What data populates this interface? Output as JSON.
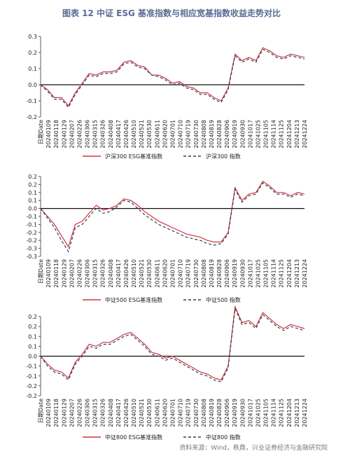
{
  "title": "图表 12  中证 ESG 基准指数与相应宽基指数收益走势对比",
  "source": "资料来源：Wind，秩鼎，兴业证券经济与金融研究院",
  "colors": {
    "esg": "#d2353f",
    "base": "#2f4159"
  },
  "chart_data": [
    {
      "type": "line",
      "title": "",
      "xlabel": "日期Date",
      "ylabel": "",
      "ylim": [
        -0.2,
        0.3
      ],
      "yticks": [
        0.3,
        0.2,
        0.1,
        0.0,
        -0.1,
        -0.2
      ],
      "ytick_labels": [
        "0.3",
        "0.2",
        "0.1",
        "0.0",
        "-0.1",
        "-0.2"
      ],
      "x_ticks": [
        "20240109",
        "20240118",
        "20240129",
        "20240207",
        "20240226",
        "20240306",
        "20240315",
        "20240326",
        "20240408",
        "20240417",
        "20240426",
        "20240510",
        "20240521",
        "20240530",
        "20240611",
        "20240620",
        "20240701",
        "20240710",
        "20240719",
        "20240730",
        "20240808",
        "20240819",
        "20240828",
        "20240906",
        "20240919",
        "20240930",
        "20241017",
        "20241025",
        "20241105",
        "20241114",
        "20241125",
        "20241204",
        "20241213",
        "20241224"
      ],
      "x": [
        "20240102",
        "20240109",
        "20240118",
        "20240129",
        "20240205",
        "20240207",
        "20240226",
        "20240306",
        "20240315",
        "20240326",
        "20240408",
        "20240417",
        "20240426",
        "20240510",
        "20240521",
        "20240530",
        "20240611",
        "20240620",
        "20240701",
        "20240710",
        "20240719",
        "20240730",
        "20240808",
        "20240819",
        "20240828",
        "20240906",
        "20240919",
        "20240924",
        "20240930",
        "20241008",
        "20241017",
        "20241025",
        "20241105",
        "20241114",
        "20241125",
        "20241204",
        "20241213",
        "20241224",
        "20241231"
      ],
      "legend": [
        "沪深300 ESG基准指数",
        "沪深300 指数"
      ],
      "series": [
        {
          "name": "沪深300 ESG基准指数",
          "values": [
            0.0,
            -0.03,
            -0.08,
            -0.08,
            -0.13,
            -0.05,
            0.01,
            0.07,
            0.06,
            0.08,
            0.08,
            0.09,
            0.14,
            0.15,
            0.12,
            0.11,
            0.06,
            0.06,
            0.04,
            0.01,
            0.02,
            -0.01,
            -0.02,
            -0.05,
            -0.05,
            -0.08,
            -0.1,
            -0.02,
            0.19,
            0.15,
            0.17,
            0.15,
            0.23,
            0.21,
            0.18,
            0.17,
            0.19,
            0.18,
            0.17
          ]
        },
        {
          "name": "沪深300 指数",
          "values": [
            0.0,
            -0.04,
            -0.09,
            -0.09,
            -0.14,
            -0.06,
            0.0,
            0.06,
            0.05,
            0.07,
            0.07,
            0.08,
            0.13,
            0.14,
            0.11,
            0.1,
            0.06,
            0.05,
            0.03,
            0.0,
            0.01,
            -0.02,
            -0.03,
            -0.06,
            -0.06,
            -0.09,
            -0.11,
            -0.03,
            0.18,
            0.14,
            0.16,
            0.14,
            0.22,
            0.2,
            0.17,
            0.16,
            0.18,
            0.17,
            0.16
          ]
        }
      ]
    },
    {
      "type": "line",
      "title": "",
      "xlabel": "日期Date",
      "ylabel": "",
      "ylim": [
        -0.3,
        0.2
      ],
      "yticks": [
        0.2,
        0.15,
        0.1,
        0.05,
        0.0,
        -0.05,
        -0.1,
        -0.15,
        -0.2,
        -0.25,
        -0.3
      ],
      "ytick_labels": [
        "0.2",
        "0.2",
        "0.1",
        "0.1",
        "0.0",
        "-0.1",
        "-0.1",
        "-0.2",
        "-0.2",
        "-0.3",
        "-0.3"
      ],
      "x_ticks": [
        "20240109",
        "20240118",
        "20240129",
        "20240207",
        "20240226",
        "20240306",
        "20240315",
        "20240326",
        "20240408",
        "20240417",
        "20240426",
        "20240510",
        "20240521",
        "20240530",
        "20240611",
        "20240620",
        "20240701",
        "20240710",
        "20240719",
        "20240730",
        "20240808",
        "20240819",
        "20240828",
        "20240906",
        "20240919",
        "20240930",
        "20241017",
        "20241025",
        "20241105",
        "20241114",
        "20241125",
        "20241204",
        "20241213",
        "20241224"
      ],
      "x": [
        "20240102",
        "20240109",
        "20240118",
        "20240129",
        "20240205",
        "20240207",
        "20240226",
        "20240306",
        "20240315",
        "20240326",
        "20240408",
        "20240417",
        "20240426",
        "20240510",
        "20240521",
        "20240530",
        "20240611",
        "20240620",
        "20240701",
        "20240710",
        "20240719",
        "20240730",
        "20240808",
        "20240819",
        "20240828",
        "20240906",
        "20240919",
        "20240924",
        "20240930",
        "20241008",
        "20241017",
        "20241025",
        "20241105",
        "20241114",
        "20241125",
        "20241204",
        "20241213",
        "20241224",
        "20241231"
      ],
      "legend": [
        "中证500 ESG基准指数",
        "中证500 指数"
      ],
      "series": [
        {
          "name": "中证500 ESG基准指数",
          "values": [
            0.0,
            -0.05,
            -0.1,
            -0.17,
            -0.24,
            -0.1,
            -0.08,
            -0.03,
            0.02,
            -0.01,
            0.0,
            0.02,
            0.06,
            0.05,
            0.02,
            -0.02,
            -0.05,
            -0.08,
            -0.1,
            -0.12,
            -0.14,
            -0.16,
            -0.17,
            -0.18,
            -0.2,
            -0.21,
            -0.21,
            -0.15,
            0.13,
            0.05,
            0.09,
            0.1,
            0.17,
            0.14,
            0.1,
            0.1,
            0.08,
            0.1,
            0.09
          ]
        },
        {
          "name": "中证500 指数",
          "values": [
            0.0,
            -0.06,
            -0.12,
            -0.2,
            -0.27,
            -0.12,
            -0.1,
            -0.05,
            0.0,
            -0.03,
            -0.02,
            0.01,
            0.05,
            0.04,
            0.0,
            -0.04,
            -0.07,
            -0.1,
            -0.12,
            -0.14,
            -0.16,
            -0.18,
            -0.19,
            -0.2,
            -0.22,
            -0.23,
            -0.22,
            -0.16,
            0.12,
            0.04,
            0.08,
            0.09,
            0.16,
            0.13,
            0.09,
            0.09,
            0.07,
            0.09,
            0.08
          ]
        }
      ]
    },
    {
      "type": "line",
      "title": "",
      "xlabel": "日期Date",
      "ylabel": "",
      "ylim": [
        -0.2,
        0.2
      ],
      "yticks": [
        0.2,
        0.15,
        0.1,
        0.05,
        0.0,
        -0.05,
        -0.1,
        -0.15,
        -0.2
      ],
      "ytick_labels": [
        "0.2",
        "0.2",
        "0.1",
        "0.1",
        "0.0",
        "-0.1",
        "-0.1",
        "-0.2",
        "-0.2"
      ],
      "x_ticks": [
        "20240109",
        "20240118",
        "20240129",
        "20240207",
        "20240226",
        "20240306",
        "20240315",
        "20240326",
        "20240408",
        "20240417",
        "20240426",
        "20240510",
        "20240521",
        "20240530",
        "20240611",
        "20240620",
        "20240701",
        "20240710",
        "20240719",
        "20240730",
        "20240808",
        "20240819",
        "20240828",
        "20240906",
        "20240919",
        "20240930",
        "20241017",
        "20241025",
        "20241105",
        "20241114",
        "20241125",
        "20241204",
        "20241213",
        "20241224"
      ],
      "x": [
        "20240102",
        "20240109",
        "20240118",
        "20240129",
        "20240205",
        "20240207",
        "20240226",
        "20240306",
        "20240315",
        "20240326",
        "20240408",
        "20240417",
        "20240426",
        "20240510",
        "20240521",
        "20240530",
        "20240611",
        "20240620",
        "20240701",
        "20240710",
        "20240719",
        "20240730",
        "20240808",
        "20240819",
        "20240828",
        "20240906",
        "20240919",
        "20240924",
        "20240930",
        "20241008",
        "20241017",
        "20241025",
        "20241105",
        "20241114",
        "20241125",
        "20241204",
        "20241213",
        "20241224",
        "20241231"
      ],
      "legend": [
        "中证800 ESG基准指数",
        "中证800 指数"
      ],
      "series": [
        {
          "name": "中证800 ESG基准指数",
          "values": [
            0.0,
            -0.04,
            -0.07,
            -0.08,
            -0.11,
            -0.03,
            0.01,
            0.06,
            0.05,
            0.07,
            0.07,
            0.09,
            0.11,
            0.12,
            0.09,
            0.06,
            0.02,
            0.01,
            -0.01,
            0.0,
            -0.02,
            -0.04,
            -0.06,
            -0.08,
            -0.09,
            -0.11,
            -0.12,
            -0.05,
            0.25,
            0.17,
            0.18,
            0.15,
            0.22,
            0.19,
            0.16,
            0.14,
            0.16,
            0.15,
            0.14
          ]
        },
        {
          "name": "中证800 指数",
          "values": [
            0.0,
            -0.05,
            -0.08,
            -0.09,
            -0.12,
            -0.04,
            0.0,
            0.05,
            0.04,
            0.06,
            0.06,
            0.08,
            0.1,
            0.11,
            0.08,
            0.05,
            0.01,
            0.0,
            -0.02,
            -0.01,
            -0.03,
            -0.05,
            -0.07,
            -0.09,
            -0.1,
            -0.12,
            -0.13,
            -0.06,
            0.24,
            0.16,
            0.17,
            0.14,
            0.21,
            0.18,
            0.15,
            0.13,
            0.15,
            0.14,
            0.13
          ]
        }
      ]
    }
  ]
}
